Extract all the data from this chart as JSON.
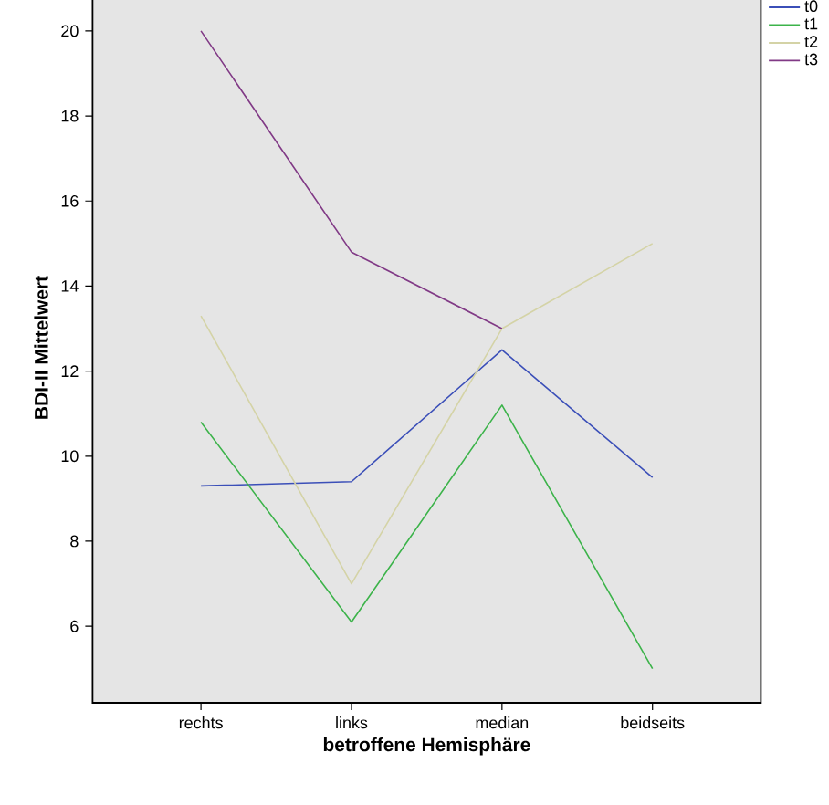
{
  "chart_data": {
    "type": "line",
    "xlabel": "betroffene Hemisphäre",
    "ylabel": "BDI-II Mittelwert",
    "categories": [
      "rechts",
      "links",
      "median",
      "beidseits"
    ],
    "series": [
      {
        "name": "t0",
        "color": "#3b4fb8",
        "values": [
          9.3,
          9.4,
          12.5,
          9.5
        ]
      },
      {
        "name": "t1",
        "color": "#3cb34a",
        "values": [
          10.8,
          6.1,
          11.2,
          5.0
        ]
      },
      {
        "name": "t2",
        "color": "#d4d3a6",
        "values": [
          13.3,
          7.0,
          13.0,
          15.0
        ]
      },
      {
        "name": "t3",
        "color": "#813a86",
        "values": [
          20.0,
          14.8,
          13.0,
          null
        ]
      }
    ],
    "ylim": [
      4.2,
      20.9
    ],
    "yticks": [
      6,
      8,
      10,
      12,
      14,
      16,
      18,
      20
    ],
    "grid": false,
    "legend": "top right",
    "marker": "none",
    "line_style": "solid"
  }
}
